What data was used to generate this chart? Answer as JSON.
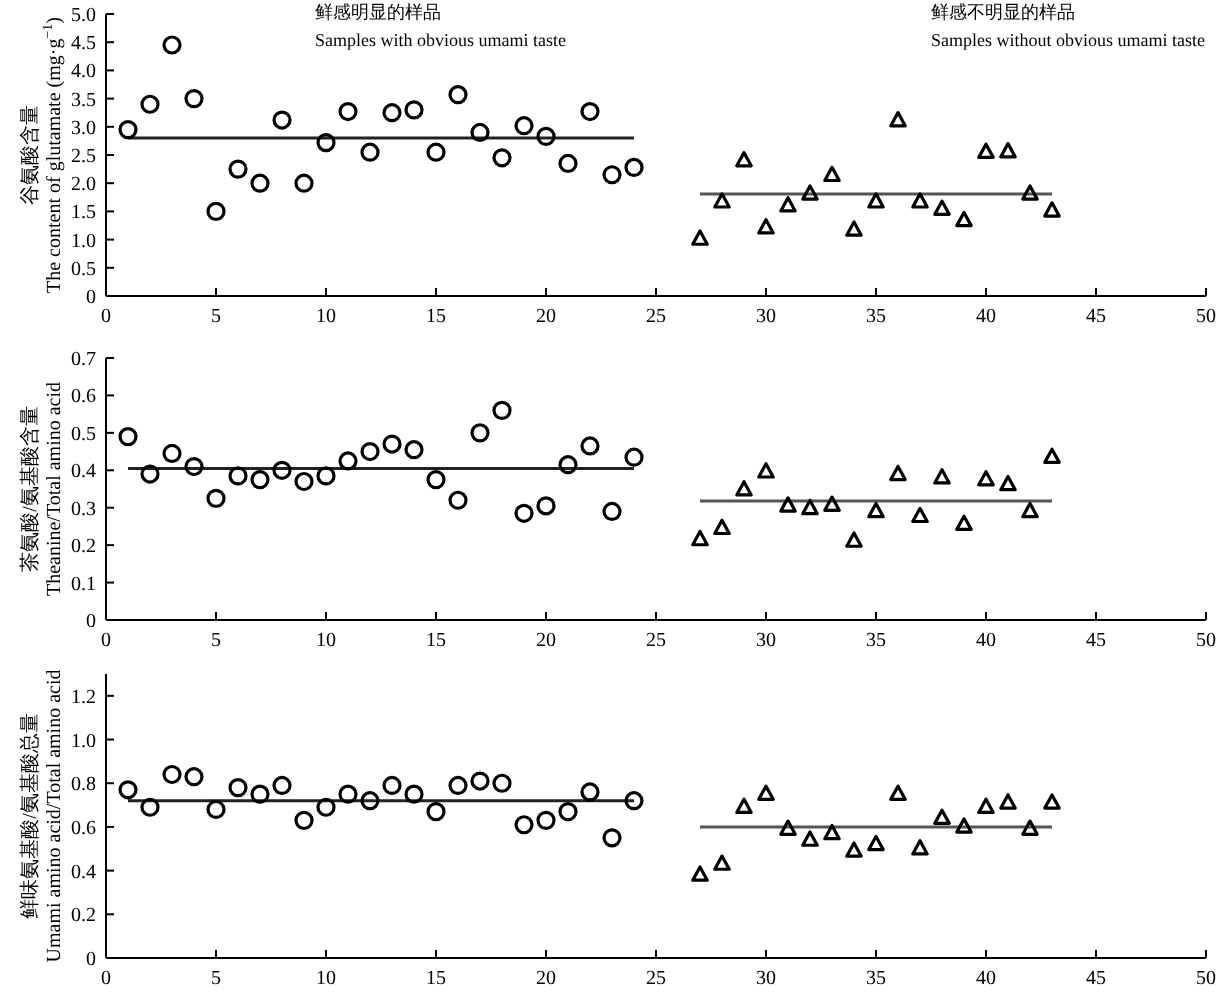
{
  "chart_data": [
    {
      "type": "scatter",
      "ylabel": "谷氨酸含量\nThe content of glutamate (mg·g$^{−1}$)",
      "xlim": [
        0,
        50
      ],
      "ylim": [
        0,
        5
      ],
      "xticks": [
        0,
        5,
        10,
        15,
        20,
        25,
        30,
        35,
        40,
        45,
        50
      ],
      "yticks": [
        0,
        {
          "value": 0.5,
          "label": "0.5"
        },
        {
          "value": 1,
          "label": "1.0"
        },
        1.5,
        {
          "value": 2,
          "label": "2.0"
        },
        2.5,
        {
          "value": 3,
          "label": "3.0"
        },
        3.5,
        {
          "value": 4,
          "label": "4.0"
        },
        4.5,
        {
          "value": 5,
          "label": "5.0"
        }
      ],
      "grid": false,
      "annotations": [
        "鲜感明显的样品",
        "Samples with obvious umami taste",
        "鲜感不明显的样品",
        "Samples without obvious umami taste"
      ],
      "series": [
        {
          "type": "scatter",
          "marker": "circle",
          "color": "#000000",
          "x": [
            1,
            2,
            3,
            4,
            5,
            6,
            7,
            8,
            9,
            10,
            11,
            12,
            13,
            14,
            15,
            16,
            17,
            18,
            19,
            20,
            21,
            22,
            23,
            24
          ],
          "values": [
            2.95,
            3.4,
            4.45,
            3.5,
            1.5,
            2.25,
            2.0,
            3.12,
            2.0,
            2.72,
            3.27,
            2.55,
            3.25,
            3.3,
            2.55,
            3.57,
            2.9,
            2.45,
            3.02,
            2.83,
            2.35,
            3.27,
            2.15,
            2.28
          ]
        },
        {
          "type": "scatter",
          "marker": "triangle",
          "color": "#000000",
          "x": [
            27,
            28,
            29,
            30,
            31,
            32,
            33,
            34,
            35,
            36,
            37,
            38,
            39,
            40,
            41,
            42,
            43
          ],
          "values": [
            1.01,
            1.67,
            2.4,
            1.21,
            1.6,
            1.81,
            2.14,
            1.17,
            1.67,
            3.11,
            1.67,
            1.54,
            1.34,
            2.55,
            2.56,
            1.81,
            1.51
          ]
        },
        {
          "type": "line",
          "marker": "none",
          "color": "#222222",
          "x": [
            1,
            24
          ],
          "values": [
            2.8,
            2.8
          ]
        },
        {
          "type": "line",
          "marker": "none",
          "color": "#555555",
          "x": [
            27,
            43
          ],
          "values": [
            1.81,
            1.81
          ]
        }
      ]
    },
    {
      "type": "scatter",
      "ylabel": "茶氨酸/氨基酸含量\nTheanine/Total amino acid",
      "xlim": [
        0,
        50
      ],
      "ylim": [
        0,
        0.7
      ],
      "xticks": [
        0,
        5,
        10,
        15,
        20,
        25,
        30,
        35,
        40,
        45,
        50
      ],
      "yticks": [
        0,
        0.1,
        0.2,
        0.3,
        0.4,
        0.5,
        0.6,
        0.7
      ],
      "grid": false,
      "series": [
        {
          "type": "scatter",
          "marker": "circle",
          "color": "#000000",
          "x": [
            1,
            2,
            3,
            4,
            5,
            6,
            7,
            8,
            9,
            10,
            11,
            12,
            13,
            14,
            15,
            16,
            17,
            18,
            19,
            20,
            21,
            22,
            23,
            24
          ],
          "values": [
            0.49,
            0.39,
            0.445,
            0.41,
            0.325,
            0.385,
            0.375,
            0.4,
            0.37,
            0.385,
            0.425,
            0.45,
            0.47,
            0.455,
            0.375,
            0.32,
            0.5,
            0.56,
            0.285,
            0.305,
            0.415,
            0.465,
            0.29,
            0.435
          ]
        },
        {
          "type": "scatter",
          "marker": "triangle",
          "color": "#000000",
          "x": [
            27,
            28,
            29,
            30,
            31,
            32,
            33,
            34,
            35,
            36,
            37,
            38,
            39,
            40,
            41,
            42,
            43
          ],
          "values": [
            0.215,
            0.245,
            0.348,
            0.396,
            0.305,
            0.298,
            0.307,
            0.211,
            0.29,
            0.389,
            0.277,
            0.38,
            0.256,
            0.375,
            0.362,
            0.29,
            0.435
          ]
        },
        {
          "type": "line",
          "marker": "none",
          "color": "#222222",
          "x": [
            1,
            24
          ],
          "values": [
            0.405,
            0.405
          ]
        },
        {
          "type": "line",
          "marker": "none",
          "color": "#555555",
          "x": [
            27,
            43
          ],
          "values": [
            0.318,
            0.318
          ]
        }
      ]
    },
    {
      "type": "scatter",
      "ylabel": "鲜味氨基酸/氨基酸总量\nUmami amino acid/Total amino acid",
      "xlim": [
        0,
        50
      ],
      "ylim": [
        0,
        1.3
      ],
      "xticks": [
        0,
        5,
        10,
        15,
        20,
        25,
        30,
        35,
        40,
        45,
        50
      ],
      "yticks": [
        0,
        0.2,
        0.4,
        0.6,
        0.8,
        {
          "value": 1,
          "label": "1.0"
        },
        1.2
      ],
      "grid": false,
      "series": [
        {
          "type": "scatter",
          "marker": "circle",
          "color": "#000000",
          "x": [
            1,
            2,
            3,
            4,
            5,
            6,
            7,
            8,
            9,
            10,
            11,
            12,
            13,
            14,
            15,
            16,
            17,
            18,
            19,
            20,
            21,
            22,
            23,
            24
          ],
          "values": [
            0.77,
            0.69,
            0.84,
            0.83,
            0.68,
            0.78,
            0.75,
            0.79,
            0.63,
            0.69,
            0.75,
            0.72,
            0.79,
            0.75,
            0.67,
            0.79,
            0.81,
            0.8,
            0.61,
            0.63,
            0.67,
            0.76,
            0.55,
            0.72
          ]
        },
        {
          "type": "scatter",
          "marker": "triangle",
          "color": "#000000",
          "x": [
            27,
            28,
            29,
            30,
            31,
            32,
            33,
            34,
            35,
            36,
            37,
            38,
            39,
            40,
            41,
            42,
            43
          ],
          "values": [
            0.38,
            0.43,
            0.69,
            0.75,
            0.59,
            0.54,
            0.57,
            0.49,
            0.52,
            0.75,
            0.5,
            0.64,
            0.6,
            0.69,
            0.71,
            0.59,
            0.71
          ]
        },
        {
          "type": "line",
          "marker": "none",
          "color": "#222222",
          "x": [
            1,
            24
          ],
          "values": [
            0.72,
            0.72
          ]
        },
        {
          "type": "line",
          "marker": "none",
          "color": "#555555",
          "x": [
            27,
            43
          ],
          "values": [
            0.6,
            0.6
          ]
        }
      ]
    }
  ]
}
